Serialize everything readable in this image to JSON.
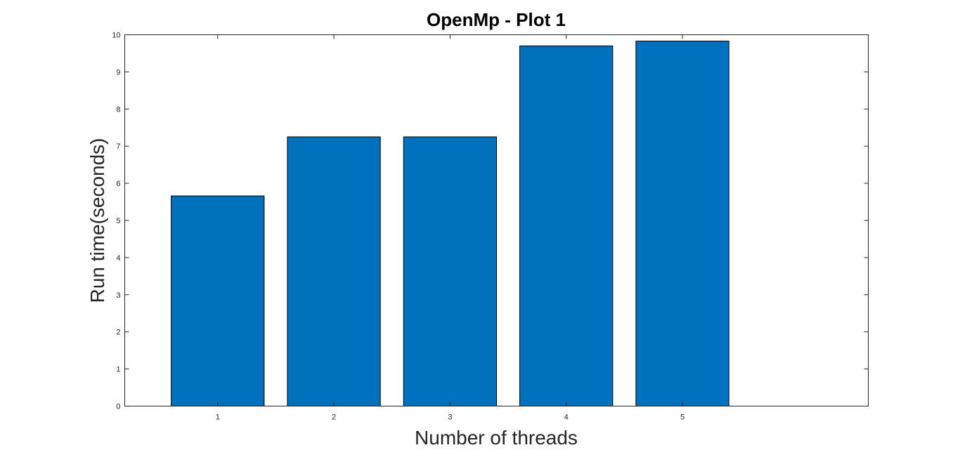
{
  "chart_data": {
    "type": "bar",
    "title": "OpenMp - Plot 1",
    "xlabel": "Number of threads",
    "ylabel": "Run time(seconds)",
    "categories": [
      "1",
      "2",
      "3",
      "4",
      "5"
    ],
    "values": [
      5.66,
      7.25,
      7.25,
      9.7,
      9.83
    ],
    "xlim": [
      0.2,
      6.6
    ],
    "ylim": [
      0,
      10
    ],
    "yticks": [
      "0",
      "1",
      "2",
      "3",
      "4",
      "5",
      "6",
      "7",
      "8",
      "9",
      "10"
    ],
    "grid": false,
    "bar_color": "#0072bd"
  }
}
